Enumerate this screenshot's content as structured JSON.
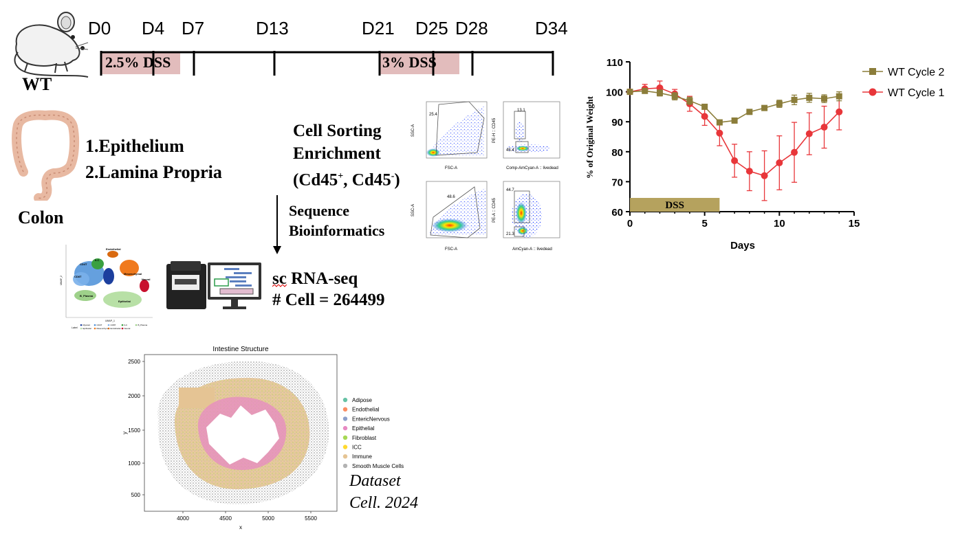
{
  "timeline": {
    "days": [
      "D0",
      "D4",
      "D7",
      "D13",
      "D21",
      "D25",
      "D28",
      "D34"
    ],
    "dss1_label": "2.5% DSS",
    "dss2_label": "3% DSS",
    "mouse_label": "WT"
  },
  "colon": {
    "label": "Colon",
    "item1": "1.Epithelium",
    "item2": "2.Lamina Propria"
  },
  "sorting": {
    "line1": "Cell Sorting",
    "line2": "Enrichment",
    "line3_prefix": "(Cd45",
    "line3_sup1": "+",
    "line3_mid": ", Cd45",
    "line3_sup2": "-",
    "line3_suffix": ")"
  },
  "sequence": {
    "line1": "Sequence",
    "line2": "Bioinformatics"
  },
  "scrna": {
    "line1": "sc RNA-seq",
    "line2": "# Cell =  264499"
  },
  "flow": {
    "p1_gate": "25.4",
    "p1_x": "FSC-A",
    "p1_y": "SSC-A",
    "p2_gate_top": "13.1",
    "p2_gate_bottom": "45.4",
    "p2_x": "Comp-AmCyan-A :: livedead",
    "p2_y": "PE-H :: CD45",
    "p3_gate": "48.6",
    "p3_x": "FSC-A",
    "p3_y": "SSC-A",
    "p4_gate_top": "44.7",
    "p4_gate_bottom": "21.3",
    "p4_x": "AmCyan-A :: livedead",
    "p4_y": "PE-A :: CD45"
  },
  "umap": {
    "clusters": [
      "Endothelial",
      "CD4T",
      "ILC",
      "CD8T",
      "Mesenchymal",
      "Neural",
      "B_Plasma",
      "Epithelial"
    ],
    "legend_title": "Label",
    "legend_items": [
      "Myeloid",
      "CD4T",
      "CD8T",
      "ILC",
      "B_Plasma",
      "Epithelial",
      "Mesenchymal",
      "Endothelial",
      "Neural"
    ],
    "xlabel": "UMAP_1",
    "ylabel": "UMAP_2"
  },
  "spatial": {
    "title": "Intestine Structure",
    "xlabel": "x",
    "ylabel": "y",
    "xticks": [
      "4000",
      "4500",
      "5000",
      "5500"
    ],
    "yticks": [
      "2500",
      "2000",
      "1500",
      "1000",
      "500"
    ],
    "legend": [
      {
        "name": "Adipose",
        "color": "#66c2a5"
      },
      {
        "name": "Endothelial",
        "color": "#fc8d62"
      },
      {
        "name": "EntericNervous",
        "color": "#8da0cb"
      },
      {
        "name": "Epithelial",
        "color": "#e78ac3"
      },
      {
        "name": "Fibroblast",
        "color": "#a6d854"
      },
      {
        "name": "ICC",
        "color": "#ffd92f"
      },
      {
        "name": "Immune",
        "color": "#e5c494"
      },
      {
        "name": "Smooth Muscle Cells",
        "color": "#b3b3b3"
      }
    ]
  },
  "dataset": {
    "line1": "Dataset",
    "line2": "Cell. 2024"
  },
  "chart_data": {
    "type": "line",
    "xlabel": "Days",
    "ylabel": "% of Original Weight",
    "xlim": [
      0,
      15
    ],
    "ylim": [
      60,
      110
    ],
    "xticks": [
      0,
      5,
      10,
      15
    ],
    "yticks": [
      60,
      70,
      80,
      90,
      100,
      110
    ],
    "dss_bar": {
      "label": "DSS",
      "start": 0,
      "end": 6
    },
    "legend_position": "top-right",
    "series": [
      {
        "name": "WT Cycle 2",
        "color": "#8b7d3a",
        "marker": "square",
        "x": [
          0,
          1,
          2,
          3,
          4,
          5,
          6,
          7,
          8,
          9,
          10,
          11,
          12,
          13,
          14
        ],
        "y": [
          100,
          100.3,
          99.6,
          98.5,
          97,
          95,
          89.8,
          90.4,
          93.3,
          94.6,
          96,
          97.3,
          98,
          97.7,
          98.5
        ],
        "err": [
          0.3,
          0.8,
          1,
          1.2,
          1.2,
          0.8,
          0.7,
          0.8,
          0.8,
          0.8,
          1.2,
          1.6,
          1.5,
          1.3,
          1.5
        ]
      },
      {
        "name": "WT Cycle 1",
        "color": "#e8363a",
        "marker": "circle",
        "x": [
          0,
          1,
          2,
          3,
          4,
          5,
          6,
          7,
          8,
          9,
          10,
          11,
          12,
          13,
          14
        ],
        "y": [
          100,
          101,
          101.3,
          99.3,
          96,
          91.8,
          86.2,
          77,
          73.5,
          72,
          76.3,
          79.8,
          86,
          88.2,
          93.3
        ],
        "err": [
          0.3,
          1.5,
          2.3,
          1.5,
          2.5,
          3,
          4.2,
          5.5,
          6.5,
          8.3,
          9,
          10,
          7,
          7,
          6
        ]
      }
    ]
  }
}
